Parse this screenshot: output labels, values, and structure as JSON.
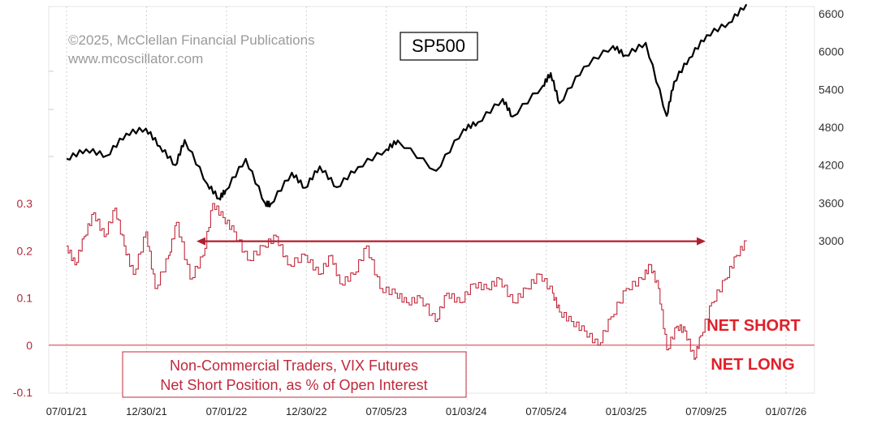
{
  "chart_data": {
    "type": "line",
    "copyright": [
      "©2025, McClellan Financial Publications",
      "www.mcoscillator.com"
    ],
    "title": "SP500",
    "x_ticks": [
      "07/01/21",
      "12/30/21",
      "07/01/22",
      "12/30/22",
      "07/05/23",
      "01/03/24",
      "07/05/24",
      "01/03/25",
      "07/09/25",
      "01/07/26"
    ],
    "y_right_ticks": [
      "6600",
      "6000",
      "5400",
      "4800",
      "4200",
      "3600",
      "3000"
    ],
    "y_left_ticks": [
      "0.3",
      "0.2",
      "0.1",
      "0",
      "-0.1"
    ],
    "y_right_range": [
      3000,
      6600
    ],
    "y_left_range": [
      -0.1,
      0.3
    ],
    "legend": [
      "Non-Commercial Traders, VIX Futures",
      "Net Short Position, as % of Open Interest"
    ],
    "zone_labels": {
      "above_zero": "NET SHORT",
      "below_zero": "NET LONG"
    },
    "annotation": {
      "type": "double-arrow",
      "level": 0.22,
      "from": "03/2022",
      "to": "10/2025"
    },
    "series": [
      {
        "name": "SP500",
        "axis": "right",
        "color": "#000000",
        "points": [
          [
            "2021-07-01",
            4300
          ],
          [
            "2021-08-15",
            4450
          ],
          [
            "2021-10-01",
            4350
          ],
          [
            "2021-11-15",
            4700
          ],
          [
            "2021-12-30",
            4780
          ],
          [
            "2022-01-31",
            4500
          ],
          [
            "2022-03-08",
            4200
          ],
          [
            "2022-03-29",
            4600
          ],
          [
            "2022-05-20",
            3900
          ],
          [
            "2022-06-16",
            3670
          ],
          [
            "2022-07-01",
            3800
          ],
          [
            "2022-08-16",
            4300
          ],
          [
            "2022-09-30",
            3590
          ],
          [
            "2022-10-12",
            3580
          ],
          [
            "2022-11-30",
            4080
          ],
          [
            "2022-12-30",
            3840
          ],
          [
            "2023-02-02",
            4180
          ],
          [
            "2023-03-13",
            3850
          ],
          [
            "2023-05-01",
            4170
          ],
          [
            "2023-07-05",
            4450
          ],
          [
            "2023-07-31",
            4590
          ],
          [
            "2023-10-27",
            4110
          ],
          [
            "2023-12-29",
            4770
          ],
          [
            "2024-01-31",
            4880
          ],
          [
            "2024-03-28",
            5250
          ],
          [
            "2024-04-19",
            4970
          ],
          [
            "2024-06-28",
            5460
          ],
          [
            "2024-07-16",
            5660
          ],
          [
            "2024-08-05",
            5180
          ],
          [
            "2024-09-30",
            5760
          ],
          [
            "2024-12-06",
            6090
          ],
          [
            "2025-01-03",
            5940
          ],
          [
            "2025-02-19",
            6140
          ],
          [
            "2025-04-08",
            4980
          ],
          [
            "2025-04-25",
            5520
          ],
          [
            "2025-05-30",
            5900
          ],
          [
            "2025-07-09",
            6260
          ],
          [
            "2025-08-29",
            6460
          ],
          [
            "2025-10-08",
            6750
          ]
        ]
      },
      {
        "name": "VIX Futures Net Short %",
        "axis": "left",
        "color": "#c0283a",
        "points": [
          [
            "2021-07-01",
            0.21
          ],
          [
            "2021-07-20",
            0.17
          ],
          [
            "2021-08-10",
            0.23
          ],
          [
            "2021-09-01",
            0.28
          ],
          [
            "2021-09-25",
            0.23
          ],
          [
            "2021-10-20",
            0.29
          ],
          [
            "2021-11-10",
            0.21
          ],
          [
            "2021-12-01",
            0.15
          ],
          [
            "2021-12-30",
            0.24
          ],
          [
            "2022-01-20",
            0.12
          ],
          [
            "2022-02-20",
            0.19
          ],
          [
            "2022-03-10",
            0.26
          ],
          [
            "2022-04-10",
            0.14
          ],
          [
            "2022-05-10",
            0.19
          ],
          [
            "2022-06-01",
            0.3
          ],
          [
            "2022-06-25",
            0.27
          ],
          [
            "2022-07-20",
            0.24
          ],
          [
            "2022-08-20",
            0.18
          ],
          [
            "2022-09-25",
            0.21
          ],
          [
            "2022-10-25",
            0.23
          ],
          [
            "2022-11-20",
            0.17
          ],
          [
            "2022-12-30",
            0.19
          ],
          [
            "2023-01-30",
            0.15
          ],
          [
            "2023-02-28",
            0.19
          ],
          [
            "2023-03-20",
            0.13
          ],
          [
            "2023-04-20",
            0.15
          ],
          [
            "2023-05-20",
            0.21
          ],
          [
            "2023-06-20",
            0.12
          ],
          [
            "2023-07-25",
            0.11
          ],
          [
            "2023-08-20",
            0.09
          ],
          [
            "2023-09-20",
            0.1
          ],
          [
            "2023-10-25",
            0.05
          ],
          [
            "2023-11-20",
            0.11
          ],
          [
            "2023-12-20",
            0.09
          ],
          [
            "2024-01-20",
            0.13
          ],
          [
            "2024-02-20",
            0.12
          ],
          [
            "2024-03-20",
            0.14
          ],
          [
            "2024-04-20",
            0.09
          ],
          [
            "2024-05-20",
            0.12
          ],
          [
            "2024-06-20",
            0.15
          ],
          [
            "2024-07-20",
            0.11
          ],
          [
            "2024-08-05",
            0.07
          ],
          [
            "2024-09-01",
            0.05
          ],
          [
            "2024-10-01",
            0.03
          ],
          [
            "2024-11-01",
            0.0
          ],
          [
            "2024-12-01",
            0.06
          ],
          [
            "2025-01-05",
            0.12
          ],
          [
            "2025-02-10",
            0.14
          ],
          [
            "2025-03-01",
            0.17
          ],
          [
            "2025-03-20",
            0.12
          ],
          [
            "2025-04-08",
            -0.01
          ],
          [
            "2025-05-01",
            0.04
          ],
          [
            "2025-05-20",
            0.03
          ],
          [
            "2025-06-10",
            -0.03
          ],
          [
            "2025-06-25",
            0.02
          ],
          [
            "2025-07-20",
            0.09
          ],
          [
            "2025-08-20",
            0.14
          ],
          [
            "2025-09-15",
            0.19
          ],
          [
            "2025-10-08",
            0.22
          ]
        ]
      }
    ],
    "grid": {
      "vertical": true,
      "horizontal_zero_line": true
    }
  }
}
